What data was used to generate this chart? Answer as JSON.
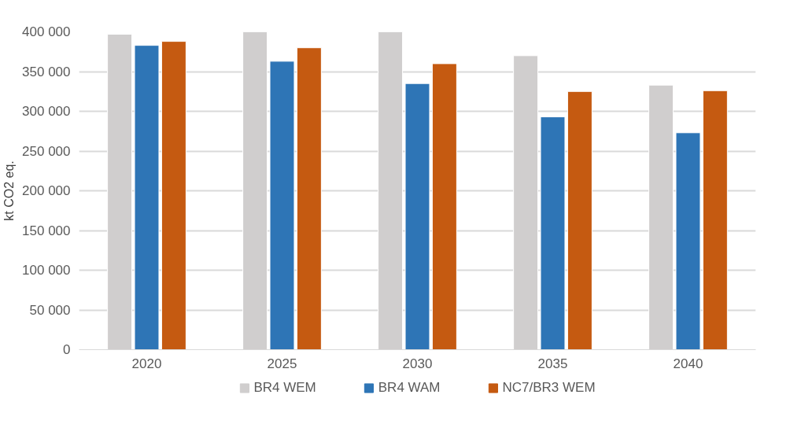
{
  "chart_data": {
    "type": "bar",
    "ylabel": "kt CO2 eq.",
    "categories": [
      "2020",
      "2025",
      "2030",
      "2035",
      "2040"
    ],
    "series": [
      {
        "name": "BR4 WEM",
        "color": "#d0cece",
        "values": [
          397000,
          400000,
          400000,
          370000,
          333000
        ]
      },
      {
        "name": "BR4 WAM",
        "color": "#2e75b6",
        "values": [
          383000,
          363000,
          335000,
          293000,
          273000
        ]
      },
      {
        "name": "NC7/BR3 WEM",
        "color": "#c55a11",
        "values": [
          388000,
          380000,
          360000,
          325000,
          326000
        ]
      }
    ],
    "ylim": [
      0,
      400000
    ],
    "yticks": [
      {
        "value": 0,
        "label": "0"
      },
      {
        "value": 50000,
        "label": "50 000"
      },
      {
        "value": 100000,
        "label": "100 000"
      },
      {
        "value": 150000,
        "label": "150 000"
      },
      {
        "value": 200000,
        "label": "200 000"
      },
      {
        "value": 250000,
        "label": "250 000"
      },
      {
        "value": 300000,
        "label": "300 000"
      },
      {
        "value": 350000,
        "label": "350 000"
      },
      {
        "value": 400000,
        "label": "400 000"
      }
    ],
    "grid": "y",
    "legend": "bottom"
  }
}
